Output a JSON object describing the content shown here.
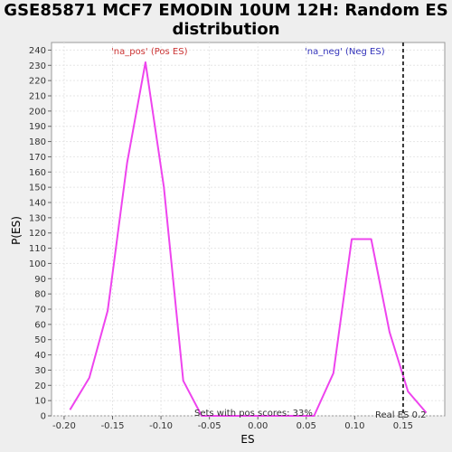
{
  "chart_data": {
    "type": "line",
    "title_line1": "GSE85871 MCF7 EMODIN 10UM 12H: Random ES",
    "title_line2": "distribution",
    "xlabel": "ES",
    "ylabel": "P(ES)",
    "xlim": [
      -0.213,
      0.193
    ],
    "ylim": [
      0,
      245
    ],
    "x_ticks": [
      -0.2,
      -0.15,
      -0.1,
      -0.05,
      0.0,
      0.05,
      0.1,
      0.15
    ],
    "x_tick_labels": [
      "-0.20",
      "-0.15",
      "-0.10",
      "-0.05",
      "0.00",
      "0.05",
      "0.10",
      "0.15"
    ],
    "y_ticks": [
      0,
      10,
      20,
      30,
      40,
      50,
      60,
      70,
      80,
      90,
      100,
      110,
      120,
      130,
      140,
      150,
      160,
      170,
      180,
      190,
      200,
      210,
      220,
      230,
      240
    ],
    "grid": true,
    "series": [
      {
        "color": "#ee44ee",
        "x": [
          -0.194,
          -0.174,
          -0.155,
          -0.135,
          -0.116,
          -0.097,
          -0.077,
          -0.058,
          0.058,
          0.078,
          0.097,
          0.117,
          0.136,
          0.155,
          0.174
        ],
        "y": [
          4,
          25,
          69,
          166,
          232,
          150,
          23,
          0,
          0,
          28,
          116,
          116,
          55,
          16,
          2
        ]
      }
    ],
    "real_es": {
      "x": 0.15,
      "label": "Real ES 0.2",
      "color": "#333333"
    },
    "annotations": {
      "pos_label": "'na_pos' (Pos ES)",
      "neg_label": "'na_neg' (Neg ES)",
      "pos_color": "#cc3333",
      "neg_color": "#3333bb",
      "pos_scores": "Sets with pos scores: 33%"
    },
    "plot_background": "#ffffff",
    "page_background": "#eeeeee"
  }
}
